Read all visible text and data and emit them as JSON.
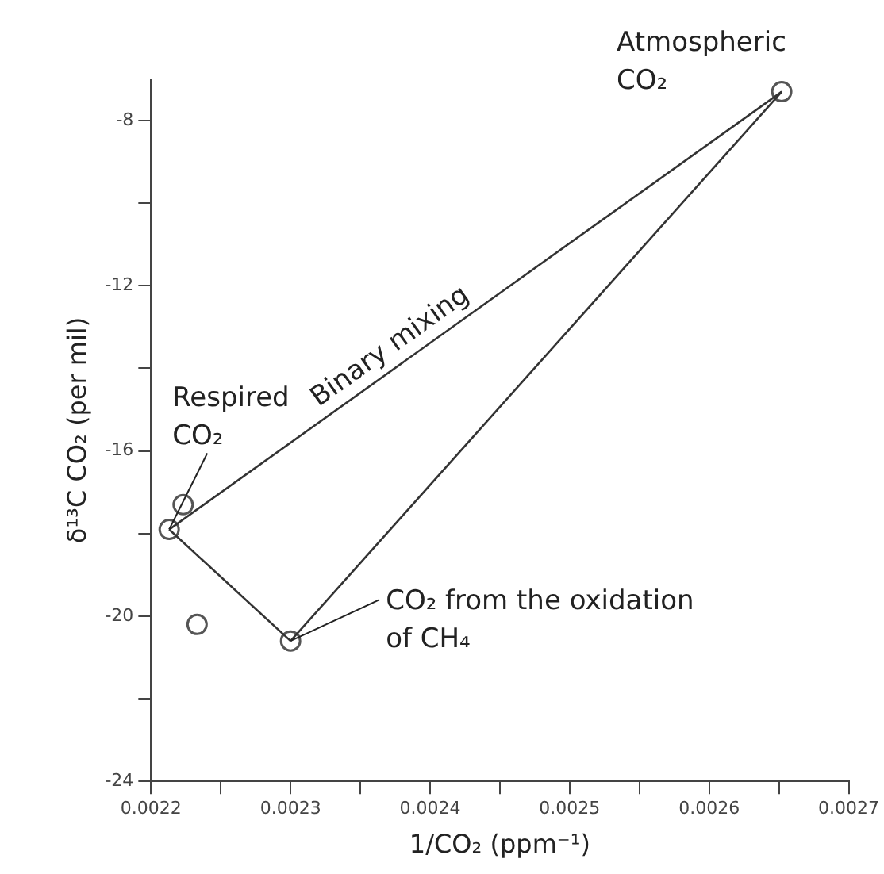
{
  "chart_data": {
    "type": "scatter",
    "xlabel": "1/CO₂ (ppm⁻¹)",
    "ylabel": "δ¹³C CO₂ (per mil)",
    "series": [
      {
        "type": "line",
        "color": "#333333",
        "x": [
          0.002213,
          0.002652
        ],
        "values": [
          -17.9,
          -7.3
        ],
        "marker": "none"
      },
      {
        "type": "line",
        "color": "#333333",
        "x": [
          0.002213,
          0.0023
        ],
        "values": [
          -17.9,
          -20.6
        ],
        "marker": "none"
      },
      {
        "type": "line",
        "color": "#333333",
        "x": [
          0.0023,
          0.002652
        ],
        "values": [
          -20.6,
          -7.3
        ],
        "marker": "none"
      },
      {
        "color": "#555555",
        "x": [
          0.002213,
          0.002652,
          0.0023,
          0.002223,
          0.002233
        ],
        "values": [
          -17.9,
          -7.3,
          -20.6,
          -17.3,
          -20.2
        ],
        "marker": "circle"
      }
    ],
    "xlim": [
      0.0022,
      0.0027
    ],
    "xticks": [
      0.0022,
      {
        "value": 0.00225,
        "label": null
      },
      0.0023,
      {
        "value": 0.00235,
        "label": null
      },
      0.0024,
      {
        "value": 0.00245,
        "label": null
      },
      0.0025,
      {
        "value": 0.00255,
        "label": null
      },
      0.0026,
      {
        "value": 0.00265,
        "label": null
      },
      0.0027
    ],
    "ylim": [
      -24,
      -7
    ],
    "yticks": [
      -24,
      {
        "value": -22,
        "label": null
      },
      -20,
      {
        "value": -18,
        "label": null
      },
      -16,
      {
        "value": -14,
        "label": null
      },
      -12,
      {
        "value": -10,
        "label": null
      },
      -8
    ],
    "annotations": [
      {
        "text": "Respired\nCO₂",
        "x": 0.002213,
        "y": -17.9
      },
      {
        "text": "Atmospheric\nCO₂",
        "x": 0.002652,
        "y": -7.3
      },
      {
        "text": "CO₂ from the oxidation\nof CH₄",
        "x": 0.0023,
        "y": -20.6
      },
      "Binary mixing"
    ],
    "grid": false,
    "legend": false
  }
}
